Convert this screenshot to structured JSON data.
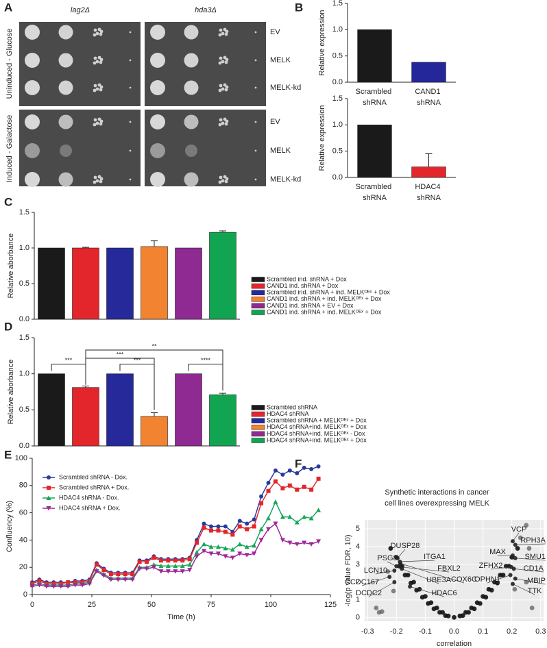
{
  "spot_assay": {
    "panel": "A",
    "strains": [
      "lag2Δ",
      "hda3Δ"
    ],
    "conditions": [
      "Uninduced - Glucose",
      "Induced - Galactose"
    ],
    "constructs": [
      "EV",
      "MELK",
      "MELK-kd"
    ]
  },
  "chart_data": [
    {
      "panel": "B",
      "type": "bar",
      "ylabel": "Relative expression",
      "categories": [
        "Scrambled shRNA",
        "CAND1 shRNA"
      ],
      "values": [
        1.0,
        0.38
      ],
      "colors": [
        "#1a1a1a",
        "#24279a"
      ],
      "ylim": [
        0,
        1.5
      ],
      "yticks": [
        {
          "value": 0,
          "label": "0.0"
        },
        0.5,
        {
          "value": 1,
          "label": "1.0"
        },
        1.5
      ]
    },
    {
      "type": "bar",
      "ylabel": "Relative expression",
      "categories": [
        "Scrambled shRNA",
        "HDAC4 shRNA"
      ],
      "values": [
        1.0,
        0.2
      ],
      "errors": [
        0,
        0.25
      ],
      "colors": [
        "#1a1a1a",
        "#e3262b"
      ],
      "ylim": [
        0,
        1.5
      ],
      "yticks": [
        {
          "value": 0,
          "label": "0.0"
        },
        0.5,
        {
          "value": 1,
          "label": "1.0"
        },
        1.5
      ]
    },
    {
      "panel": "C",
      "type": "bar",
      "ylabel": "Relative aborbance",
      "ylim": [
        0,
        1.5
      ],
      "yticks": [
        {
          "value": 0,
          "label": "0.0"
        },
        0.5,
        {
          "value": 1,
          "label": "1.0"
        },
        1.5
      ],
      "series": [
        {
          "name": "Scrambled ind. shRNA + Dox",
          "color": "#1a1a1a",
          "values": [
            1.0
          ]
        },
        {
          "name": "CAND1 ind. shRNA + Dox",
          "color": "#e3262b",
          "values": [
            1.0
          ],
          "errors": [
            0.01
          ]
        },
        {
          "name": "Scrambled ind. shRNA + ind. MELKᴼᴱˣ + Dox",
          "color": "#25299a",
          "values": [
            1.0
          ]
        },
        {
          "name": "CAND1 ind. shRNA + ind. MELKᴼᴱˣ + Dox",
          "color": "#f28330",
          "values": [
            1.02
          ],
          "errors": [
            0.08
          ]
        },
        {
          "name": "CAND1 ind. shRNA + EV + Dox",
          "color": "#8e2a91",
          "values": [
            1.0
          ]
        },
        {
          "name": "CAND1 ind. shRNA + ind. MELKᴼᴱˣ + Dox",
          "color": "#12a551",
          "values": [
            1.22
          ],
          "errors": [
            0.02
          ]
        }
      ]
    },
    {
      "panel": "D",
      "type": "bar",
      "ylabel": "Relative aborbance",
      "ylim": [
        0,
        1.5
      ],
      "yticks": [
        {
          "value": 0,
          "label": "0.0"
        },
        0.5,
        {
          "value": 1,
          "label": "1.0"
        },
        1.5
      ],
      "series": [
        {
          "name": "Scrambled shRNA",
          "color": "#1a1a1a",
          "values": [
            1.0
          ]
        },
        {
          "name": "HDAC4 shRNA",
          "color": "#e3262b",
          "values": [
            0.81
          ],
          "errors": [
            0.02
          ]
        },
        {
          "name": "Scrambled shRNA + MELKᴼᴱˣ + Dox",
          "color": "#25299a",
          "values": [
            1.0
          ]
        },
        {
          "name": "HDAC4 shRNA+ind. MELKᴼᴱˣ + Dox",
          "color": "#f28330",
          "values": [
            0.41
          ],
          "errors": [
            0.05
          ]
        },
        {
          "name": "HDAC4 shRNA+ind. MELKᴼᴱˣ - Dox",
          "color": "#8e2a91",
          "values": [
            1.0
          ]
        },
        {
          "name": "HDAC4 shRNA+ind. MELKᴼᴱˣ + Dox",
          "color": "#12a551",
          "values": [
            0.71
          ],
          "errors": [
            0.02
          ]
        }
      ],
      "annotations": [
        {
          "text": "***",
          "bars": [
            0,
            1
          ]
        },
        {
          "text": "***",
          "bars": [
            2,
            3
          ]
        },
        {
          "text": "****",
          "bars": [
            4,
            5
          ]
        },
        {
          "text": "***",
          "bars": [
            1,
            3
          ]
        },
        {
          "text": "**",
          "bars": [
            1,
            5
          ]
        }
      ]
    },
    {
      "panel": "E",
      "type": "line",
      "xlabel": "Time (h)",
      "ylabel": "Confluency (%)",
      "xlim": [
        0,
        125
      ],
      "xticks": [
        0,
        25,
        50,
        75,
        100,
        125
      ],
      "ylim": [
        0,
        100
      ],
      "yticks": [
        0,
        20,
        40,
        60,
        80,
        100
      ],
      "x": [
        0,
        3,
        6,
        9,
        12,
        15,
        18,
        21,
        24,
        27,
        30,
        33,
        36,
        39,
        42,
        45,
        48,
        51,
        54,
        57,
        60,
        63,
        66,
        69,
        72,
        75,
        78,
        81,
        84,
        87,
        90,
        93,
        96,
        99,
        102,
        105,
        108,
        111,
        114,
        117,
        120
      ],
      "series": [
        {
          "name": "Scrambled shRNA - Dox.",
          "color": "#2b3a9a",
          "marker": "circle",
          "values": [
            9,
            11,
            9,
            9,
            9,
            9,
            10,
            10,
            11,
            23,
            19,
            16,
            16,
            16,
            16,
            25,
            25,
            28,
            26,
            26,
            26,
            26,
            27,
            40,
            52,
            50,
            50,
            50,
            46,
            54,
            52,
            55,
            72,
            82,
            91,
            88,
            91,
            89,
            93,
            92,
            94
          ]
        },
        {
          "name": "Scrambled shRNA + Dox.",
          "color": "#e3262b",
          "marker": "square",
          "values": [
            8,
            10,
            8,
            8,
            8,
            9,
            9,
            9,
            10,
            22,
            18,
            15,
            15,
            15,
            15,
            24,
            24,
            27,
            25,
            25,
            25,
            25,
            26,
            38,
            49,
            47,
            47,
            46,
            44,
            50,
            48,
            50,
            67,
            76,
            83,
            78,
            80,
            77,
            79,
            77,
            85
          ]
        },
        {
          "name": "HDAC4 shRNA - Dox.",
          "color": "#17a55a",
          "marker": "triangle-up",
          "values": [
            7,
            8,
            7,
            7,
            7,
            7,
            8,
            8,
            9,
            18,
            15,
            12,
            12,
            12,
            12,
            20,
            20,
            22,
            21,
            21,
            21,
            21,
            22,
            31,
            37,
            35,
            35,
            34,
            33,
            37,
            35,
            36,
            48,
            56,
            68,
            57,
            57,
            53,
            57,
            56,
            62
          ]
        },
        {
          "name": "HDAC4 shRNA + Dox.",
          "color": "#a0279a",
          "marker": "triangle-down",
          "values": [
            6,
            7,
            6,
            6,
            6,
            6,
            7,
            7,
            8,
            17,
            14,
            11,
            11,
            11,
            11,
            19,
            19,
            20,
            17,
            17,
            17,
            17,
            18,
            28,
            32,
            30,
            30,
            28,
            27,
            30,
            29,
            30,
            40,
            48,
            52,
            40,
            38,
            37,
            38,
            37,
            39
          ]
        }
      ]
    },
    {
      "panel": "F",
      "type": "scatter",
      "title": [
        "Synthetic interactions in cancer",
        "cell lines overexpressing MELK"
      ],
      "xlabel": "correlation",
      "ylabel": "-log(p value FDR, 10)",
      "grid": true,
      "xlim": [
        -0.31,
        0.31
      ],
      "xticks": [
        -0.3,
        -0.2,
        -0.1,
        {
          "value": 0,
          "label": "0.0"
        },
        0.1,
        0.2,
        0.3
      ],
      "ylim": [
        -0.2,
        5.5
      ],
      "yticks": [
        0,
        1,
        2,
        3,
        4,
        5
      ],
      "series": [
        {
          "color": "#111111",
          "x": [
            -0.22,
            -0.2,
            -0.18,
            -0.16,
            -0.14,
            -0.12,
            -0.1,
            -0.08,
            -0.06,
            -0.04,
            -0.02,
            0,
            0.02,
            0.04,
            0.06,
            0.08,
            0.1,
            0.12,
            0.14,
            0.16,
            0.18,
            0.2,
            0.22,
            -0.19,
            -0.17,
            -0.15,
            -0.13,
            -0.11,
            -0.09,
            -0.07,
            -0.05,
            -0.03,
            0.03,
            0.05,
            0.07,
            0.09,
            0.11,
            0.13,
            0.15,
            0.17,
            0.19
          ],
          "y": [
            3.9,
            3.4,
            2.9,
            2.4,
            2.0,
            1.6,
            1.2,
            0.85,
            0.55,
            0.3,
            0.1,
            0.02,
            0.1,
            0.3,
            0.55,
            0.85,
            1.2,
            1.6,
            2.0,
            2.4,
            2.9,
            3.4,
            3.9,
            2.9,
            2.4,
            1.95,
            1.55,
            1.15,
            0.8,
            0.5,
            0.3,
            0.12,
            0.12,
            0.3,
            0.5,
            0.8,
            1.15,
            1.55,
            1.95,
            2.4,
            2.9
          ]
        },
        {
          "color": "#555555",
          "x": [
            -0.27,
            -0.25,
            0.27,
            0.25,
            -0.23,
            0.25,
            0.23,
            0.26,
            -0.21,
            0.21,
            -0.26
          ],
          "y": [
            0.55,
            0.35,
            0.55,
            5.2,
            2.6,
            2.0,
            4.5,
            3.9,
            1.5,
            1.6,
            0.3
          ]
        },
        {
          "color": "#222222",
          "labels": [
            "VCP",
            "RPH3A",
            "MAX",
            "SMU1",
            "ZFHX2",
            "CD1A",
            "OPHN1",
            "MBIP",
            "TTK",
            "DUSP28",
            "ITGA1",
            "PSG8",
            "FBXL2",
            "LCN10",
            "COX6C",
            "UBE3A",
            "CCDC167",
            "DCDC2"
          ],
          "x": [
            0.203,
            0.212,
            0.203,
            0.212,
            0.198,
            0.207,
            0.195,
            0.212,
            0.203,
            -0.196,
            -0.188,
            -0.2,
            -0.184,
            -0.207,
            -0.186,
            -0.181,
            -0.224,
            -0.207
          ],
          "y": [
            4.3,
            4.1,
            3.5,
            3.35,
            2.85,
            2.75,
            2.4,
            2.2,
            1.9,
            3.35,
            3.15,
            2.9,
            2.85,
            2.65,
            3.05,
            2.75,
            2.3,
            2.0
          ]
        },
        {
          "color": "#222222",
          "label_color": "#e3262b",
          "labels": [
            "HDAC6"
          ],
          "x": [
            -0.153
          ],
          "y": [
            1.75
          ]
        }
      ]
    }
  ]
}
